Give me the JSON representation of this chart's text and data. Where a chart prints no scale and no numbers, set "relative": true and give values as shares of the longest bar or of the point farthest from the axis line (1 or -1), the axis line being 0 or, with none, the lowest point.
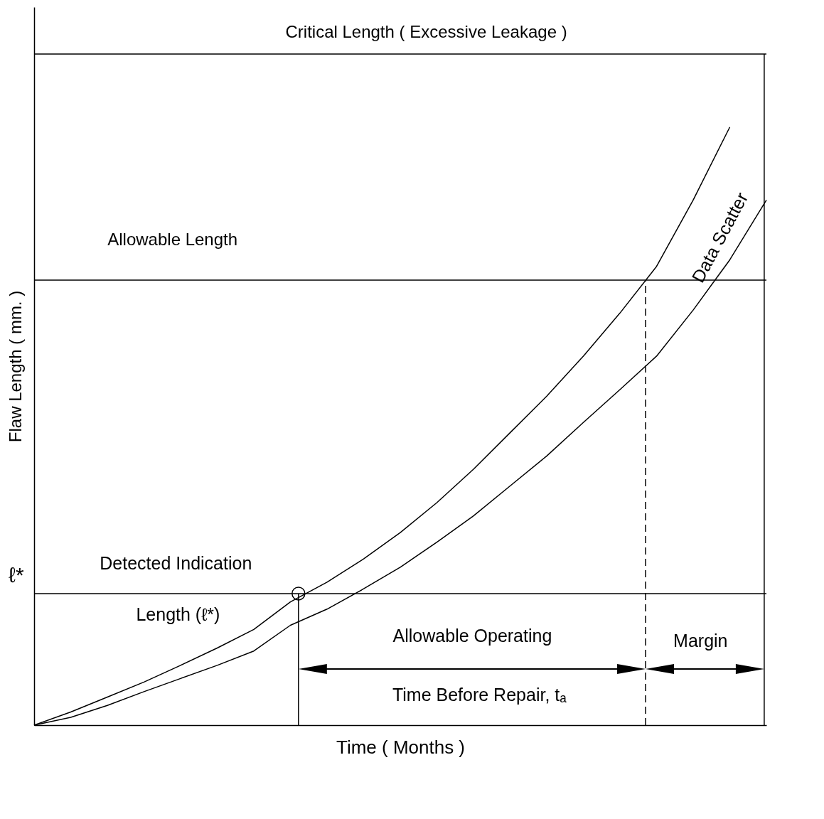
{
  "chart_data": {
    "type": "line",
    "relative": true,
    "xlabel": "Time ( Months )",
    "ylabel": "Flaw Length ( mm. )",
    "categories": [
      null,
      null,
      null,
      null,
      null,
      null,
      null,
      null,
      null,
      null,
      null,
      null,
      null,
      null,
      null,
      null,
      null,
      null,
      null,
      null,
      null
    ],
    "series": [
      {
        "color": "#000000",
        "values": [
          0,
          0.022,
          0.047,
          0.072,
          0.1,
          0.129,
          0.16,
          0.206,
          0.239,
          0.278,
          0.322,
          0.372,
          0.428,
          0.489,
          0.55,
          0.617,
          0.689,
          0.767,
          0.878,
          1.0,
          null
        ]
      },
      {
        "color": "#000000",
        "values": [
          0,
          0.013,
          0.033,
          0.056,
          0.078,
          0.1,
          0.124,
          0.167,
          0.194,
          0.228,
          0.264,
          0.306,
          0.35,
          0.4,
          0.45,
          0.506,
          0.561,
          0.617,
          0.694,
          0.778,
          0.878
        ]
      }
    ],
    "ref_lines": [
      {
        "axis": "y",
        "value": 1.122,
        "label": "Critical Length ( Excessive Leakage )"
      },
      {
        "axis": "y",
        "value": 0.744,
        "label": "Allowable Length"
      },
      {
        "axis": "y",
        "value": 0.22,
        "label": "ℓ*"
      }
    ],
    "annotations": [
      "Detected Indication",
      "Length (ℓ*)",
      "Allowable Operating",
      "Time Before Repair, tₐ",
      "Margin",
      "Data Scatter"
    ],
    "line_style": "solid"
  }
}
